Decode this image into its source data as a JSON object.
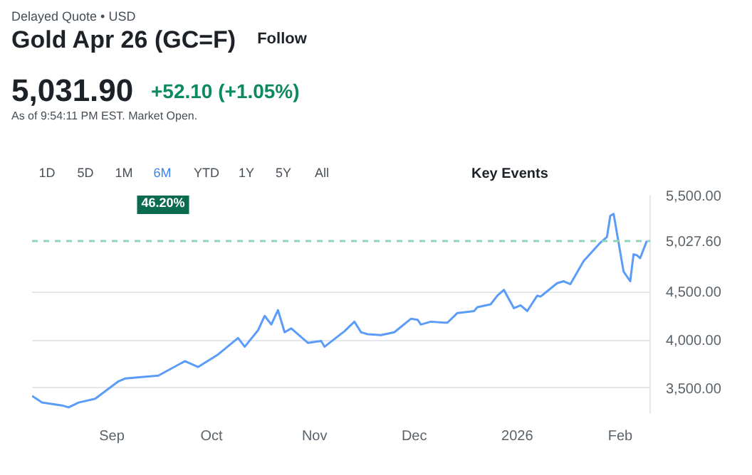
{
  "chart_data": {
    "type": "line",
    "title": "Gold Apr 26 (GC=F)",
    "subtitle": "Delayed Quote • USD",
    "annotations": [
      "Follow",
      "5,031.90",
      "+52.10 (+1.05%)",
      "As of 9:54:11 PM EST. Market Open.",
      "1D",
      "5D",
      "1M",
      "6M",
      "YTD",
      "1Y",
      "5Y",
      "All",
      "46.20%",
      "Key Events"
    ],
    "x": [
      "2025-08-08",
      "2025-08-11",
      "2025-08-17",
      "2025-08-19",
      "2025-08-22",
      "2025-08-27",
      "2025-09-03",
      "2025-09-05",
      "2025-09-15",
      "2025-09-23",
      "2025-09-27",
      "2025-10-03",
      "2025-10-09",
      "2025-10-11",
      "2025-10-15",
      "2025-10-17",
      "2025-10-19",
      "2025-10-21",
      "2025-10-23",
      "2025-10-25",
      "2025-10-30",
      "2025-11-03",
      "2025-11-04",
      "2025-11-10",
      "2025-11-13",
      "2025-11-15",
      "2025-11-17",
      "2025-11-21",
      "2025-11-25",
      "2025-11-30",
      "2025-12-02",
      "2025-12-03",
      "2025-12-06",
      "2025-12-10",
      "2025-12-11",
      "2025-12-14",
      "2025-12-19",
      "2025-12-20",
      "2025-12-24",
      "2025-12-26",
      "2025-12-28",
      "2025-12-31",
      "2026-01-02",
      "2026-01-04",
      "2026-01-07",
      "2026-01-08",
      "2026-01-13",
      "2026-01-15",
      "2026-01-17",
      "2026-01-21",
      "2026-01-26",
      "2026-01-28",
      "2026-01-29",
      "2026-01-30",
      "2026-02-02",
      "2026-02-04",
      "2026-02-05",
      "2026-02-06",
      "2026-02-07",
      "2026-02-09"
    ],
    "series": [
      {
        "color": "#5a9cf8",
        "values": [
          3420,
          3350,
          3320,
          3300,
          3350,
          3390,
          3570,
          3600,
          3630,
          3780,
          3720,
          3850,
          4020,
          3930,
          4100,
          4250,
          4160,
          4310,
          4080,
          4120,
          3970,
          3990,
          3930,
          4090,
          4190,
          4080,
          4060,
          4050,
          4080,
          4220,
          4210,
          4160,
          4190,
          4180,
          4180,
          4280,
          4300,
          4340,
          4370,
          4460,
          4520,
          4330,
          4360,
          4300,
          4460,
          4450,
          4590,
          4610,
          4580,
          4820,
          5010,
          5070,
          5290,
          5310,
          4710,
          4610,
          4890,
          4880,
          4850,
          5030
        ]
      }
    ],
    "xlim": [
      "2025-08-08",
      "2026-02-10"
    ],
    "xticks": [
      {
        "value": "2025-09-01",
        "label": "Sep"
      },
      {
        "value": "2025-10-01",
        "label": "Oct"
      },
      {
        "value": "2025-11-01",
        "label": "Nov"
      },
      {
        "value": "2025-12-01",
        "label": "Dec"
      },
      {
        "value": "2026-01-01",
        "label": "2026"
      },
      {
        "value": "2026-02-01",
        "label": "Feb"
      }
    ],
    "ylim": [
      3240,
      5500
    ],
    "yticks": [
      {
        "value": 3500,
        "label": "3,500.00"
      },
      {
        "value": 4000,
        "label": "4,000.00"
      },
      {
        "value": 4500,
        "label": "4,500.00"
      },
      {
        "value": 5500,
        "label": "5,500.00"
      }
    ],
    "ref_lines": [
      {
        "axis": "y",
        "value": 5027.6,
        "label": "5,027.60",
        "color": "#8fd6b6",
        "line_style": "dashed"
      }
    ],
    "grid": "y",
    "marker": "none",
    "line_style": "solid"
  }
}
